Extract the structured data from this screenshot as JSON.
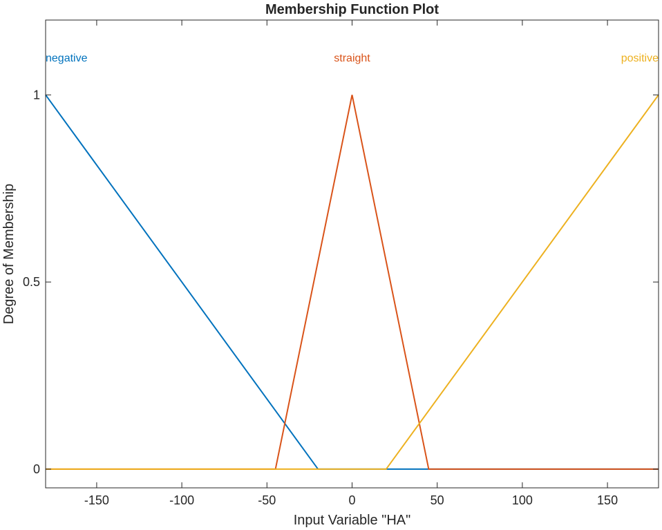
{
  "chart_data": {
    "type": "line",
    "title": "Membership Function Plot",
    "xlabel": "Input Variable \"HA\"",
    "ylabel": "Degree of Membership",
    "xlim": [
      -180,
      180
    ],
    "ylim": [
      -0.05,
      1.2
    ],
    "xticks": [
      -150,
      -100,
      -50,
      0,
      50,
      100,
      150
    ],
    "yticks": [
      0,
      0.5,
      1
    ],
    "ytick_labels": [
      "0",
      "0.5",
      "1"
    ],
    "grid": false,
    "series": [
      {
        "name": "negative",
        "color": "#0072BD",
        "x": [
          -180,
          -20,
          180
        ],
        "y": [
          1,
          0,
          0
        ],
        "label_at": [
          -180,
          1.1
        ],
        "label_anchor": "start"
      },
      {
        "name": "straight",
        "color": "#D95319",
        "x": [
          -180,
          -45,
          0,
          45,
          180
        ],
        "y": [
          0,
          0,
          1,
          0,
          0
        ],
        "label_at": [
          0,
          1.1
        ],
        "label_anchor": "middle"
      },
      {
        "name": "positive",
        "color": "#EDB120",
        "x": [
          -180,
          20,
          180
        ],
        "y": [
          0,
          0,
          1
        ],
        "label_at": [
          180,
          1.1
        ],
        "label_anchor": "end"
      }
    ]
  }
}
